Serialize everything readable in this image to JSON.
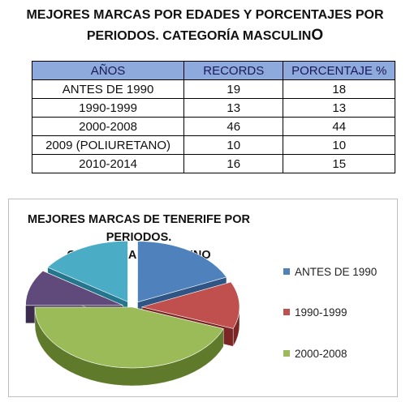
{
  "header": {
    "title_line1": "MEJORES MARCAS POR EDADES Y PORCENTAJES POR",
    "title_line2_prefix": "PERIODOS. CATEGORÍA MASCULIN",
    "title_line2_suffix": "O"
  },
  "table": {
    "columns": [
      "AÑOS",
      "RECORDS",
      "PORCENTAJE %"
    ],
    "rows": [
      [
        "ANTES DE 1990",
        "19",
        "18"
      ],
      [
        "1990-1999",
        "13",
        "13"
      ],
      [
        "2000-2008",
        "46",
        "44"
      ],
      [
        "2009  (POLIURETANO)",
        "10",
        "10"
      ],
      [
        "2010-2014",
        "16",
        "15"
      ]
    ]
  },
  "chart_data": {
    "type": "pie",
    "title": "MEJORES MARCAS DE TENERIFE POR PERIODOS. CATEGORÍA MASCULINO",
    "title_line1": "MEJORES MARCAS DE TENERIFE POR PERIODOS.",
    "title_line2": "CATEGORÍA MASCULINO",
    "categories": [
      "ANTES DE 1990",
      "1990-1999",
      "2000-2008",
      "2009  (POLIURETANO)",
      "2010-2014"
    ],
    "values": [
      19,
      13,
      46,
      10,
      16
    ],
    "colors": [
      "#4f81bd",
      "#c0504d",
      "#9bbb59",
      "#604a7b",
      "#4bacc6"
    ],
    "dark_colors": [
      "#2f5585",
      "#7a2624",
      "#5e7a2a",
      "#3a2b4f",
      "#23768c"
    ],
    "exploded_slices": [
      0,
      1,
      3,
      4
    ],
    "legend": {
      "position": "right",
      "items": [
        "ANTES DE 1990",
        "1990-1999",
        "2000-2008"
      ]
    }
  }
}
